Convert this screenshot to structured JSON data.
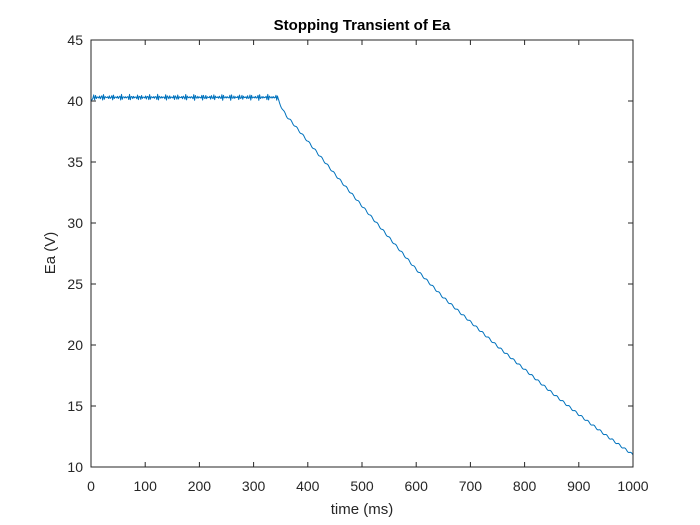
{
  "chart_data": {
    "type": "line",
    "title": "Stopping Transient of Ea",
    "xlabel": "time (ms)",
    "ylabel": "Ea (V)",
    "xlim": [
      0,
      1000
    ],
    "ylim": [
      10,
      45
    ],
    "xticks": [
      "0",
      "100",
      "200",
      "300",
      "400",
      "500",
      "600",
      "700",
      "800",
      "900",
      "1000"
    ],
    "yticks": [
      "10",
      "15",
      "20",
      "25",
      "30",
      "35",
      "40",
      "45"
    ],
    "grid": false,
    "series": [
      {
        "color": "#0072BD",
        "x": [
          0,
          5,
          10,
          20,
          40,
          80,
          120,
          160,
          200,
          240,
          280,
          320,
          340,
          344,
          348,
          355,
          360,
          370,
          400,
          450,
          500,
          550,
          600,
          650,
          700,
          750,
          800,
          850,
          900,
          950,
          1000
        ],
        "y": [
          40.0,
          40.3,
          40.3,
          40.3,
          40.3,
          40.3,
          40.3,
          40.3,
          40.3,
          40.3,
          40.3,
          40.3,
          40.3,
          40.3,
          39.8,
          39.2,
          38.8,
          38.3,
          36.7,
          34.0,
          31.4,
          28.8,
          26.2,
          23.9,
          21.9,
          19.9,
          18.0,
          16.1,
          14.3,
          12.6,
          11.0
        ]
      }
    ],
    "noise_region": {
      "x_start": 0,
      "x_end": 344,
      "amplitude": 0.25
    }
  }
}
